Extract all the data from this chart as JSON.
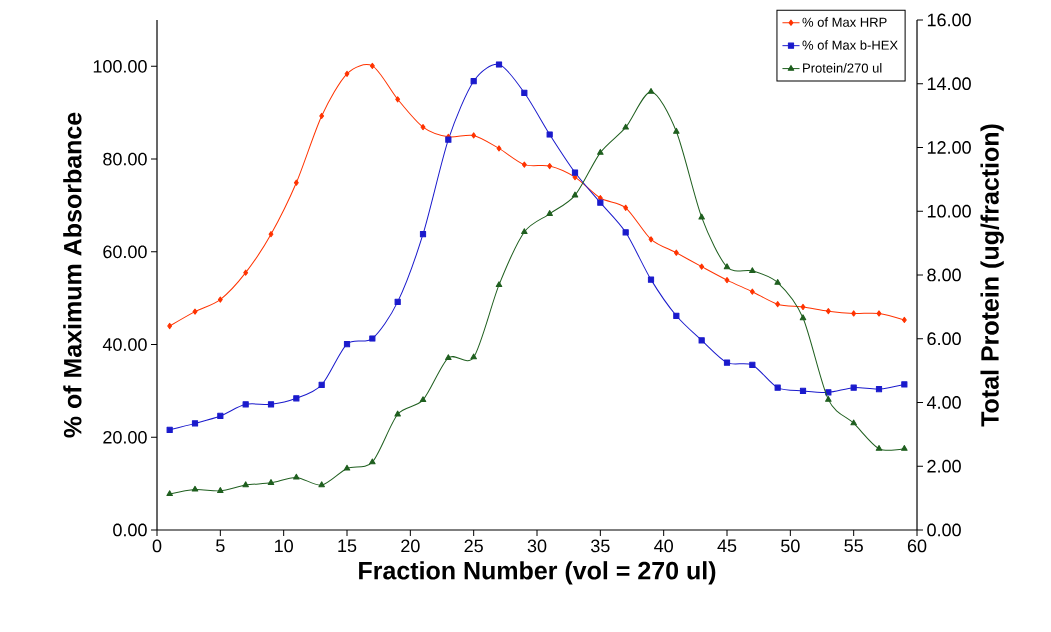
{
  "chart_data": {
    "type": "line",
    "xlabel": "Fraction Number (vol = 270 ul)",
    "ylabel": "% of Maximum Absorbance",
    "y2label": "Total Protein (ug/fraction)",
    "x": [
      1,
      3,
      5,
      7,
      9,
      11,
      13,
      15,
      17,
      19,
      21,
      23,
      25,
      27,
      29,
      31,
      33,
      35,
      37,
      39,
      41,
      43,
      45,
      47,
      49,
      51,
      53,
      55,
      57,
      59
    ],
    "series": [
      {
        "name": "% of Max HRP",
        "color": "#ff3300",
        "marker": "diamond",
        "values": [
          44.0,
          47.1,
          49.7,
          55.5,
          63.8,
          74.9,
          89.3,
          98.4,
          100.1,
          92.9,
          86.9,
          84.8,
          85.1,
          82.3,
          78.8,
          78.5,
          76.1,
          71.6,
          69.5,
          62.7,
          59.8,
          56.8,
          53.9,
          51.4,
          48.7,
          48.1,
          47.2,
          46.7,
          46.7,
          45.3
        ]
      },
      {
        "name": "% of Max b-HEX",
        "color": "#1a1acc",
        "marker": "square",
        "values": [
          21.6,
          23.0,
          24.6,
          27.1,
          27.1,
          28.4,
          31.3,
          40.1,
          41.3,
          49.2,
          63.8,
          84.2,
          96.8,
          100.4,
          94.3,
          85.3,
          77.1,
          70.6,
          64.2,
          54.0,
          46.2,
          40.9,
          36.1,
          35.6,
          30.7,
          30.0,
          29.7,
          30.7,
          30.4,
          31.4
        ]
      },
      {
        "name": "Protein/270 ul",
        "color": "#1f5f1f",
        "marker": "triangle",
        "axis": "y2",
        "values": [
          1.13,
          1.27,
          1.23,
          1.41,
          1.48,
          1.65,
          1.41,
          1.93,
          2.13,
          3.63,
          4.08,
          5.4,
          5.42,
          7.69,
          9.35,
          9.92,
          10.5,
          11.84,
          12.63,
          13.75,
          12.5,
          9.81,
          8.25,
          8.13,
          7.76,
          6.65,
          4.09,
          3.35,
          2.55,
          2.55
        ]
      }
    ],
    "xlim": [
      0,
      60
    ],
    "xticks": [
      0,
      5,
      10,
      15,
      20,
      25,
      30,
      35,
      40,
      45,
      50,
      55,
      60
    ],
    "ylim": [
      0,
      110
    ],
    "yticks": [
      {
        "value": 0,
        "label": "0.00"
      },
      {
        "value": 20,
        "label": "20.00"
      },
      {
        "value": 40,
        "label": "40.00"
      },
      {
        "value": 60,
        "label": "60.00"
      },
      {
        "value": 80,
        "label": "80.00"
      },
      {
        "value": 100,
        "label": "100.00"
      }
    ],
    "y2lim": [
      0,
      16
    ],
    "y2ticks": [
      {
        "value": 0,
        "label": "0.00"
      },
      {
        "value": 2,
        "label": "2.00"
      },
      {
        "value": 4,
        "label": "4.00"
      },
      {
        "value": 6,
        "label": "6.00"
      },
      {
        "value": 8,
        "label": "8.00"
      },
      {
        "value": 10,
        "label": "10.00"
      },
      {
        "value": 12,
        "label": "12.00"
      },
      {
        "value": 14,
        "label": "14.00"
      },
      {
        "value": 16,
        "label": "16.00"
      }
    ],
    "legend": "top right"
  }
}
